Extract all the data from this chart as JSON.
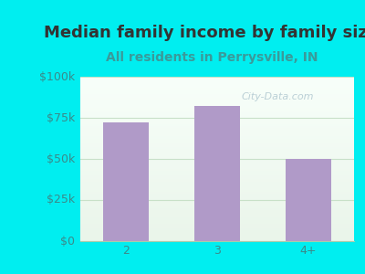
{
  "title": "Median family income by family size",
  "subtitle": "All residents in Perrysville, IN",
  "categories": [
    "2",
    "3",
    "4+"
  ],
  "values": [
    72000,
    82000,
    50000
  ],
  "bar_color": "#b09ac8",
  "background_color": "#00eef0",
  "title_color": "#333333",
  "subtitle_color": "#3a9a9a",
  "tick_label_color": "#3a8a8a",
  "ylim": [
    0,
    100000
  ],
  "yticks": [
    0,
    25000,
    50000,
    75000,
    100000
  ],
  "ytick_labels": [
    "$0",
    "$25k",
    "$50k",
    "$75k",
    "$100k"
  ],
  "watermark": "City-Data.com",
  "watermark_color": "#b0c8d0",
  "title_fontsize": 13,
  "subtitle_fontsize": 10,
  "tick_fontsize": 9,
  "gradient_top": "#eaf5ea",
  "gradient_bottom": "#f8fffa",
  "grid_color": "#c8e0c8"
}
